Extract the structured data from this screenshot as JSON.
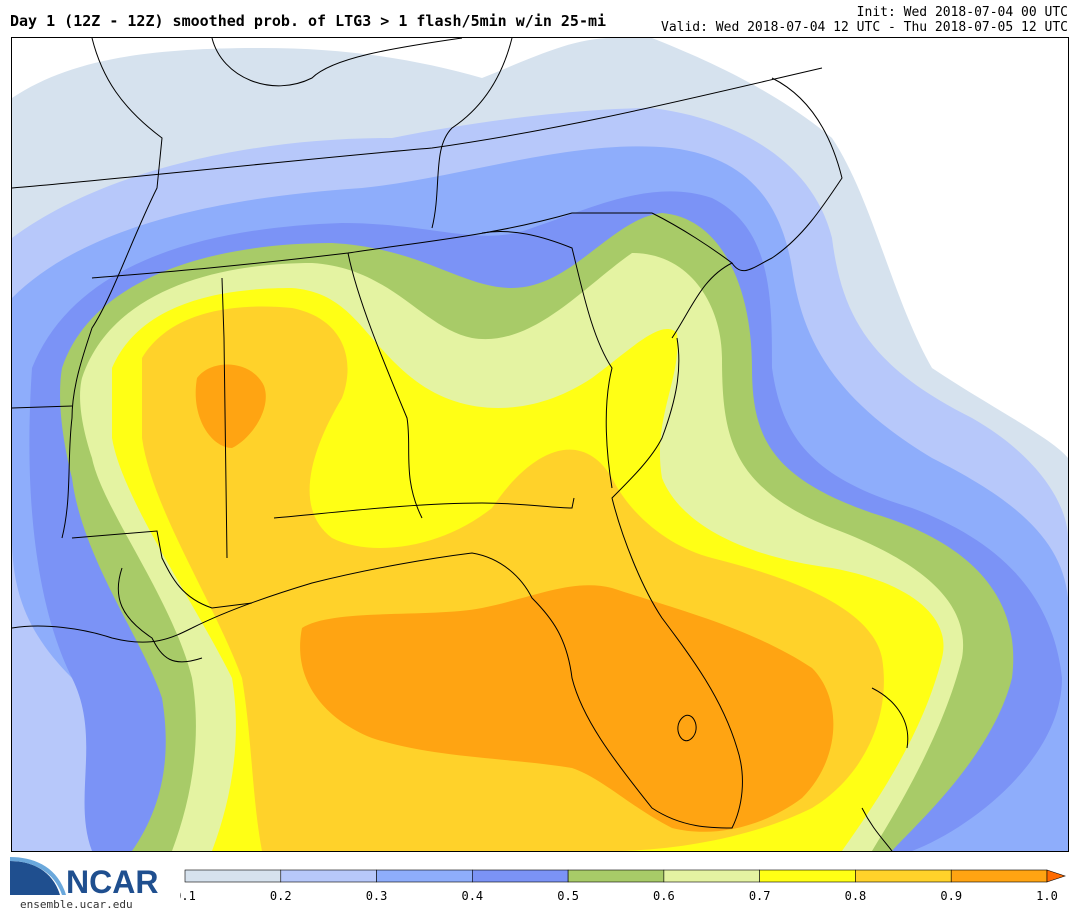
{
  "header": {
    "title": "Day 1 (12Z - 12Z) smoothed prob. of LTG3 > 1 flash/5min w/in 25-mi",
    "init": "Init: Wed 2018-07-04 00 UTC",
    "valid": "Valid: Wed 2018-07-04 12 UTC - Thu 2018-07-05 12 UTC"
  },
  "logo": {
    "text": "NCAR",
    "url": "ensemble.ucar.edu",
    "color": "#1f4f8f"
  },
  "colorbar": {
    "levels": [
      "0.1",
      "0.2",
      "0.3",
      "0.4",
      "0.5",
      "0.6",
      "0.7",
      "0.8",
      "0.9",
      "1.0"
    ],
    "colors": [
      "#d6e2ee",
      "#b7c8fa",
      "#8eadfb",
      "#7b93f6",
      "#a8cb68",
      "#e4f3a2",
      "#ffff15",
      "#ffd22a",
      "#ffa412"
    ],
    "arrow_color": "#ff6a00"
  }
}
